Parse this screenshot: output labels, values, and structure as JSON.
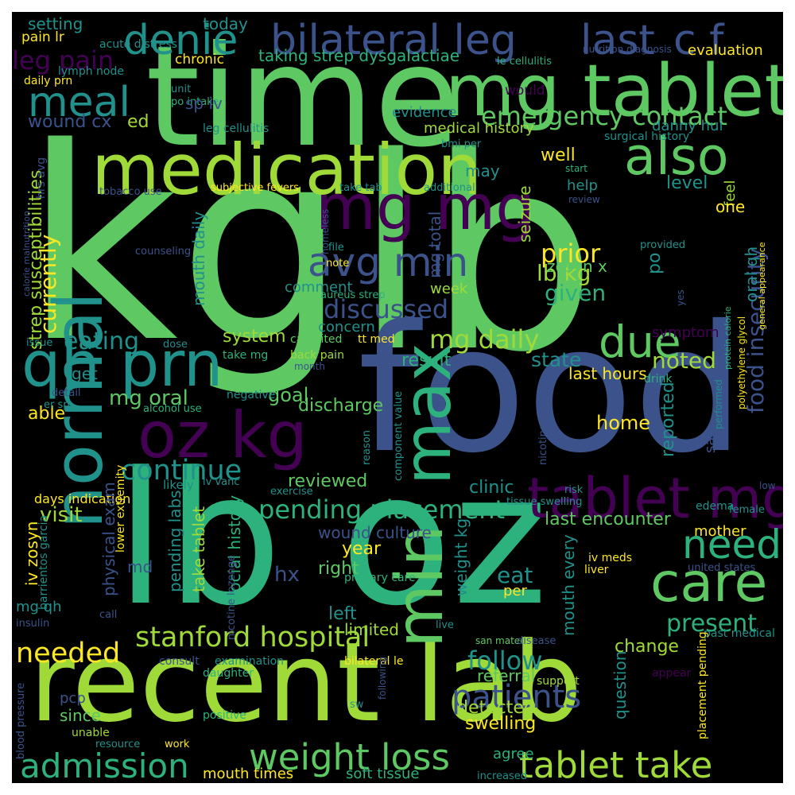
{
  "colors": {
    "background": "#000000",
    "frame": "#ffffff",
    "palette": [
      "#440154",
      "#3b528b",
      "#21918c",
      "#2db27d",
      "#5ec962",
      "#a0da39",
      "#fde725"
    ]
  },
  "words": [
    {
      "text": "kg",
      "color": "#5ec962"
    },
    {
      "text": "lb",
      "color": "#5ec962"
    },
    {
      "text": "food",
      "color": "#3b528b"
    },
    {
      "text": "lb oz",
      "color": "#2db27d"
    },
    {
      "text": "time",
      "color": "#5ec962"
    },
    {
      "text": "recent lab",
      "color": "#a0da39"
    },
    {
      "text": "mg tablet",
      "color": "#5ec962"
    },
    {
      "text": "medication",
      "color": "#a0da39"
    },
    {
      "text": "bilateral leg",
      "color": "#3b528b"
    },
    {
      "text": "last",
      "color": "#3b528b"
    },
    {
      "text": "c f",
      "color": "#3b528b"
    },
    {
      "text": "mg mg",
      "color": "#440154"
    },
    {
      "text": "oz kg",
      "color": "#440154"
    },
    {
      "text": "qh prn",
      "color": "#21918c"
    },
    {
      "text": "normal",
      "color": "#21918c"
    },
    {
      "text": "max",
      "color": "#2db27d"
    },
    {
      "text": "min",
      "color": "#5ec962"
    },
    {
      "text": "tablet mg",
      "color": "#440154"
    },
    {
      "text": "care",
      "color": "#5ec962"
    },
    {
      "text": "avg min",
      "color": "#3b528b"
    },
    {
      "text": "also",
      "color": "#5ec962"
    },
    {
      "text": "meal",
      "color": "#21918c"
    },
    {
      "text": "denie",
      "color": "#21918c"
    },
    {
      "text": "due",
      "color": "#5ec962"
    },
    {
      "text": "need",
      "color": "#2db27d"
    },
    {
      "text": "stanford hospital",
      "color": "#a0da39"
    },
    {
      "text": "weight loss",
      "color": "#5ec962"
    },
    {
      "text": "tablet take",
      "color": "#a0da39"
    },
    {
      "text": "admission",
      "color": "#2db27d"
    },
    {
      "text": "patients",
      "color": "#3b528b"
    },
    {
      "text": "emergency contact",
      "color": "#5ec962"
    },
    {
      "text": "leg pain",
      "color": "#440154"
    },
    {
      "text": "continue",
      "color": "#21918c"
    },
    {
      "text": "pending placement",
      "color": "#2db27d"
    },
    {
      "text": "discussed",
      "color": "#3b528b"
    },
    {
      "text": "food insecurity",
      "color": "#3b528b"
    },
    {
      "text": "present",
      "color": "#2db27d"
    },
    {
      "text": "follow",
      "color": "#21918c"
    },
    {
      "text": "needed",
      "color": "#fde725"
    },
    {
      "text": "mg daily",
      "color": "#a0da39"
    },
    {
      "text": "prior",
      "color": "#fde725"
    },
    {
      "text": "eating",
      "color": "#21918c"
    },
    {
      "text": "lb kg",
      "color": "#a0da39"
    },
    {
      "text": "currently",
      "color": "#fde725"
    },
    {
      "text": "noted",
      "color": "#a0da39"
    },
    {
      "text": "setting",
      "color": "#21918c"
    },
    {
      "text": "today",
      "color": "#21918c"
    },
    {
      "text": "pain lr",
      "color": "#fde725"
    },
    {
      "text": "acute distress",
      "color": "#21918c"
    },
    {
      "text": "chronic",
      "color": "#fde725"
    },
    {
      "text": "taking strep dysgalactiae",
      "color": "#2db27d"
    },
    {
      "text": "evaluation",
      "color": "#fde725"
    },
    {
      "text": "le cellulitis",
      "color": "#2db27d"
    },
    {
      "text": "nutrition diagnosis",
      "color": "#3b528b"
    },
    {
      "text": "lymph node",
      "color": "#21918c"
    },
    {
      "text": "daily prn",
      "color": "#fde725"
    },
    {
      "text": "unit",
      "color": "#21918c"
    },
    {
      "text": "would",
      "color": "#440154"
    },
    {
      "text": "po intake",
      "color": "#2db27d"
    },
    {
      "text": "sp iv",
      "color": "#3b528b"
    },
    {
      "text": "evidence",
      "color": "#21918c"
    },
    {
      "text": "wound cx",
      "color": "#3b528b"
    },
    {
      "text": "ed",
      "color": "#a0da39"
    },
    {
      "text": "medical history",
      "color": "#a0da39"
    },
    {
      "text": "danny hui",
      "color": "#21918c"
    },
    {
      "text": "leg cellulitis",
      "color": "#21918c"
    },
    {
      "text": "surgical history",
      "color": "#21918c"
    },
    {
      "text": "bmi per",
      "color": "#21918c"
    },
    {
      "text": "well",
      "color": "#fde725"
    },
    {
      "text": "feel",
      "color": "#a0da39"
    },
    {
      "text": "start",
      "color": "#2db27d"
    },
    {
      "text": "may",
      "color": "#21918c"
    },
    {
      "text": "level",
      "color": "#21918c"
    },
    {
      "text": "help",
      "color": "#21918c"
    },
    {
      "text": "subjective fevers",
      "color": "#fde725"
    },
    {
      "text": "take tab",
      "color": "#21918c"
    },
    {
      "text": "additional",
      "color": "#21918c"
    },
    {
      "text": "tobacco use",
      "color": "#3b528b"
    },
    {
      "text": "review",
      "color": "#3b528b"
    },
    {
      "text": "one",
      "color": "#fde725"
    },
    {
      "text": "seizure",
      "color": "#a0da39"
    },
    {
      "text": "mg total",
      "color": "#3b528b"
    },
    {
      "text": "mouth daily",
      "color": "#21918c"
    },
    {
      "text": "zosyn x",
      "color": "#5ec962"
    },
    {
      "text": "counseling",
      "color": "#3b528b"
    },
    {
      "text": "file",
      "color": "#21918c"
    },
    {
      "text": "note",
      "color": "#fde725"
    },
    {
      "text": "provided",
      "color": "#21918c"
    },
    {
      "text": "po",
      "color": "#21918c"
    },
    {
      "text": "oral qh",
      "color": "#21918c"
    },
    {
      "text": "comment",
      "color": "#21918c"
    },
    {
      "text": "aureus strep",
      "color": "#2db27d"
    },
    {
      "text": "week",
      "color": "#a0da39"
    },
    {
      "text": "given",
      "color": "#2db27d"
    },
    {
      "text": "strep susceptibilities",
      "color": "#a0da39"
    },
    {
      "text": "calorie malnutrition",
      "color": "#3b528b"
    },
    {
      "text": "concern",
      "color": "#21918c"
    },
    {
      "text": "system",
      "color": "#a0da39"
    },
    {
      "text": "take mg",
      "color": "#2db27d"
    },
    {
      "text": "ca united",
      "color": "#5ec962"
    },
    {
      "text": "back pain",
      "color": "#a0da39"
    },
    {
      "text": "tt med",
      "color": "#fde725"
    },
    {
      "text": "symptom",
      "color": "#440154"
    },
    {
      "text": "homeless",
      "color": "#3b528b"
    },
    {
      "text": "state",
      "color": "#21918c"
    },
    {
      "text": "result",
      "color": "#2db27d"
    },
    {
      "text": "last hours",
      "color": "#fde725"
    },
    {
      "text": "dose",
      "color": "#21918c"
    },
    {
      "text": "drink",
      "color": "#2db27d"
    },
    {
      "text": "issue",
      "color": "#21918c"
    },
    {
      "text": "get",
      "color": "#21918c"
    },
    {
      "text": "mg oral",
      "color": "#5ec962"
    },
    {
      "text": "goal",
      "color": "#5ec962"
    },
    {
      "text": "month",
      "color": "#3b528b"
    },
    {
      "text": "detail",
      "color": "#3b528b"
    },
    {
      "text": "negative",
      "color": "#21918c"
    },
    {
      "text": "alcohol use",
      "color": "#2db27d"
    },
    {
      "text": "discharge",
      "color": "#5ec962"
    },
    {
      "text": "able",
      "color": "#fde725"
    },
    {
      "text": "er sp",
      "color": "#21918c"
    },
    {
      "text": "reported",
      "color": "#21918c"
    },
    {
      "text": "say",
      "color": "#3b528b"
    },
    {
      "text": "home",
      "color": "#fde725"
    },
    {
      "text": "nicotine patch",
      "color": "#3b528b"
    },
    {
      "text": "component value",
      "color": "#21918c"
    },
    {
      "text": "reason",
      "color": "#21918c"
    },
    {
      "text": "visit",
      "color": "#a0da39"
    },
    {
      "text": "iv zosyn",
      "color": "#fde725"
    },
    {
      "text": "clinic",
      "color": "#21918c"
    },
    {
      "text": "reviewed",
      "color": "#5ec962"
    },
    {
      "text": "exercise",
      "color": "#21918c"
    },
    {
      "text": "days indication",
      "color": "#fde725"
    },
    {
      "text": "likely",
      "color": "#21918c"
    },
    {
      "text": "physical exam",
      "color": "#3b528b"
    },
    {
      "text": "take tablet",
      "color": "#a0da39"
    },
    {
      "text": "pending labs",
      "color": "#21918c"
    },
    {
      "text": "social history",
      "color": "#2db27d"
    },
    {
      "text": "wound culture",
      "color": "#3b528b"
    },
    {
      "text": "weight kg",
      "color": "#21918c"
    },
    {
      "text": "last encounter",
      "color": "#5ec962"
    },
    {
      "text": "mother",
      "color": "#fde725"
    },
    {
      "text": "edema",
      "color": "#21918c"
    },
    {
      "text": "performed",
      "color": "#21918c"
    },
    {
      "text": "female",
      "color": "#21918c"
    },
    {
      "text": "tissue swelling",
      "color": "#21918c"
    },
    {
      "text": "lower extremity",
      "color": "#fde725"
    },
    {
      "text": "barrientos garcia",
      "color": "#21918c"
    },
    {
      "text": "md",
      "color": "#3b528b"
    },
    {
      "text": "year",
      "color": "#fde725"
    },
    {
      "text": "right",
      "color": "#5ec962"
    },
    {
      "text": "hx",
      "color": "#3b528b"
    },
    {
      "text": "eat",
      "color": "#21918c"
    },
    {
      "text": "per",
      "color": "#fde725"
    },
    {
      "text": "primary care",
      "color": "#2db27d"
    },
    {
      "text": "mouth every",
      "color": "#21918c"
    },
    {
      "text": "iv meds",
      "color": "#fde725"
    },
    {
      "text": "liver",
      "color": "#fde725"
    },
    {
      "text": "united states",
      "color": "#3b528b"
    },
    {
      "text": "mg qh",
      "color": "#21918c"
    },
    {
      "text": "left",
      "color": "#21918c"
    },
    {
      "text": "limited",
      "color": "#a0da39"
    },
    {
      "text": "insulin",
      "color": "#3b528b"
    },
    {
      "text": "call",
      "color": "#3b528b"
    },
    {
      "text": "nicotine lozenge",
      "color": "#3b528b"
    },
    {
      "text": "live",
      "color": "#21918c"
    },
    {
      "text": "san mateo",
      "color": "#5ec962"
    },
    {
      "text": "disease",
      "color": "#3b528b"
    },
    {
      "text": "change",
      "color": "#a0da39"
    },
    {
      "text": "question",
      "color": "#21918c"
    },
    {
      "text": "past medical",
      "color": "#21918c"
    },
    {
      "text": "referral",
      "color": "#5ec962"
    },
    {
      "text": "support",
      "color": "#a0da39"
    },
    {
      "text": "consult",
      "color": "#3b528b"
    },
    {
      "text": "examination",
      "color": "#21918c"
    },
    {
      "text": "bilateral le",
      "color": "#fde725"
    },
    {
      "text": "detected",
      "color": "#a0da39"
    },
    {
      "text": "swelling",
      "color": "#fde725"
    },
    {
      "text": "appear",
      "color": "#440154"
    },
    {
      "text": "daughter",
      "color": "#2db27d"
    },
    {
      "text": "pcp",
      "color": "#3b528b"
    },
    {
      "text": "since",
      "color": "#5ec962"
    },
    {
      "text": "positive",
      "color": "#2db27d"
    },
    {
      "text": "sw",
      "color": "#21918c"
    },
    {
      "text": "unable",
      "color": "#a0da39"
    },
    {
      "text": "resource",
      "color": "#21918c"
    },
    {
      "text": "work",
      "color": "#fde725"
    },
    {
      "text": "mouth times",
      "color": "#fde725"
    },
    {
      "text": "soft tissue",
      "color": "#2db27d"
    },
    {
      "text": "agree",
      "color": "#2db27d"
    },
    {
      "text": "increased",
      "color": "#21918c"
    },
    {
      "text": "blood pressure",
      "color": "#3b528b"
    },
    {
      "text": "following",
      "color": "#3b528b"
    },
    {
      "text": "placement pending",
      "color": "#fde725"
    },
    {
      "text": "hrs avg",
      "color": "#3b528b"
    },
    {
      "text": "iv vanc",
      "color": "#21918c"
    },
    {
      "text": "risk",
      "color": "#21918c"
    },
    {
      "text": "yes",
      "color": "#3b528b"
    },
    {
      "text": "low",
      "color": "#3b528b"
    },
    {
      "text": "protein calorie",
      "color": "#2db27d"
    },
    {
      "text": "polyethylene glycol",
      "color": "#fde725"
    },
    {
      "text": "general appearance",
      "color": "#fde725"
    }
  ]
}
